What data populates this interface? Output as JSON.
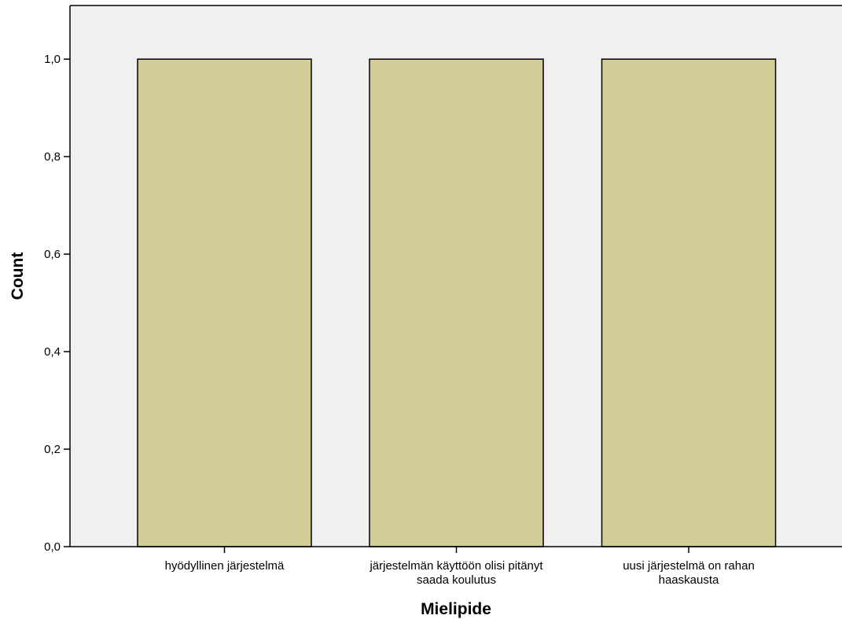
{
  "chart_data": {
    "type": "bar",
    "categories": [
      [
        "hyödyllinen järjestelmä"
      ],
      [
        "järjestelmän käyttöön olisi pitänyt",
        "saada koulutus"
      ],
      [
        "uusi järjestelmä on rahan",
        "haaskausta"
      ]
    ],
    "values": [
      1,
      1,
      1
    ],
    "title": "",
    "xlabel": "Mielipide",
    "ylabel": "Count",
    "ylim": [
      0,
      1.11
    ],
    "yticks": [
      "0,0",
      "0,2",
      "0,4",
      "0,6",
      "0,8",
      "1,0"
    ],
    "ytick_values": [
      0,
      0.2,
      0.4,
      0.6,
      0.8,
      1.0
    ],
    "grid": false,
    "colors": {
      "bar_fill": "#d3ce98",
      "bar_stroke": "#000000",
      "plot_background": "#f0f0f0"
    }
  }
}
